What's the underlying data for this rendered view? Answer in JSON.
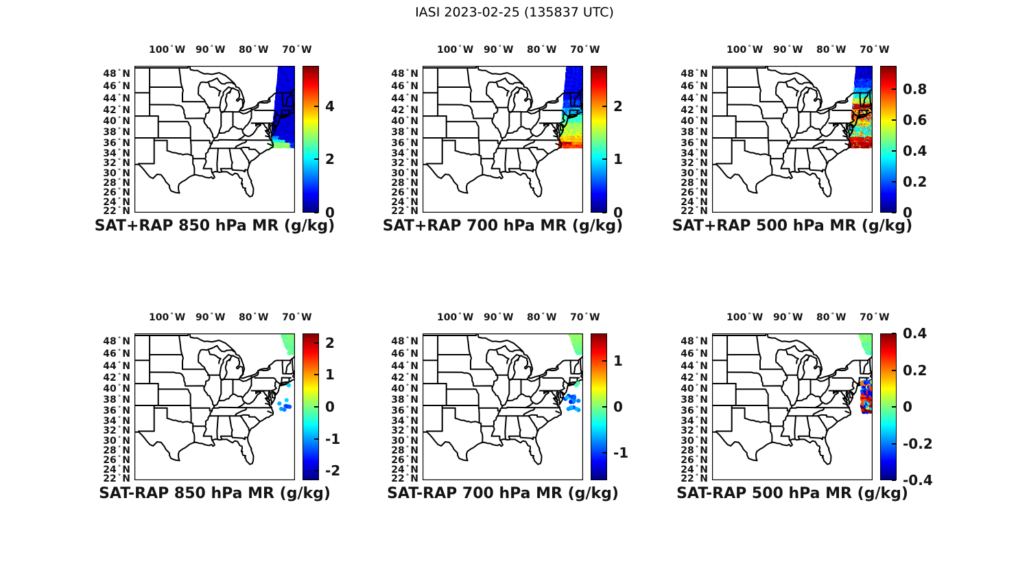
{
  "figure_title": "IASI 2023-02-25 (135837 UTC)",
  "axes": {
    "degree_symbol": "°",
    "lon_suffix": "W",
    "lat_suffix": "N",
    "lon_tick_labels": [
      "100",
      "90",
      "80",
      "70"
    ],
    "lat_tick_labels": [
      "48",
      "46",
      "44",
      "42",
      "40",
      "38",
      "36",
      "34",
      "32",
      "30",
      "28",
      "26",
      "24",
      "22"
    ]
  },
  "chart_data": {
    "type": "scatter",
    "description": "Six map panels over the eastern United States showing IASI satellite mixing-ratio retrievals along a north-south swath near 70W. Top row: SAT+RAP retrieved mixing ratio at 850/700/500 hPa. Bottom row: SAT minus RAP differences at the same levels. Jet colormap colorbars at right of each panel.",
    "projection": "mercator",
    "lon_range": [
      -107.55,
      -70.45
    ],
    "lat_range": [
      21.7,
      49.32
    ],
    "lon_tick_values": [
      -100,
      -90,
      -80,
      -70
    ],
    "lat_tick_values": [
      48,
      46,
      44,
      42,
      40,
      38,
      36,
      34,
      32,
      30,
      28,
      26,
      24,
      22
    ],
    "colormap": "jet",
    "grid": false,
    "swath_geometry": {
      "lat": [
        35.35,
        49.28
      ],
      "dlat": 0.18,
      "lon_east": -70.2,
      "west_edge_base": -75.8,
      "west_edge_slope": 0.13,
      "dlon": 0.26,
      "marker": 4.6
    },
    "wedge_geometry": {
      "lat": [
        46.25,
        49.2
      ],
      "dlat": 0.26,
      "lon_east": -70.05,
      "west_top": -73.35,
      "west_slope": 0.55,
      "dlon": 0.3,
      "marker": 3.1
    },
    "panels": [
      {
        "title": "SAT+RAP 850 hPa MR (g/kg)",
        "summary": "Swath mostly 0.3-0.7 g/kg (dark blue); yellow-orange spots 2-3 g/kg near 35.5-37N on west side of swath.",
        "colorbar": {
          "vmin": 0,
          "vmax": 5.52,
          "tick_values": [
            0,
            2,
            4
          ],
          "tick_labels": [
            "0",
            "2",
            "4"
          ]
        },
        "seed": 11,
        "swath_bands": [
          {
            "lat": [
              37.6,
              49.3
            ],
            "v": [
              0.5,
              0.45
            ]
          },
          {
            "lat": [
              36.9,
              37.6
            ],
            "v": [
              0.5,
              0.4
            ],
            "west": [
              0.28,
              1.55,
              0.5
            ]
          },
          {
            "lat": [
              36.3,
              36.9
            ],
            "v": [
              0.6,
              0.5
            ],
            "west": [
              0.55,
              2.2,
              0.8
            ]
          },
          {
            "lat": [
              35.3,
              36.3
            ],
            "v": [
              0.9,
              0.6
            ],
            "west": [
              0.78,
              2.85,
              0.7
            ]
          }
        ]
      },
      {
        "title": "SAT+RAP 700 hPa MR (g/kg)",
        "summary": "Swath graded from ~0.3 g/kg (blue) north of 44N through cyan/green 38-42N to 2-2.6 g/kg (orange/dark red) near 35.5-36.5N.",
        "colorbar": {
          "vmin": 0,
          "vmax": 2.76,
          "tick_values": [
            0,
            1,
            2
          ],
          "tick_labels": [
            "0",
            "1",
            "2"
          ]
        },
        "seed": 22,
        "swath_bands": [
          {
            "lat": [
              44.0,
              49.3
            ],
            "v": [
              0.3,
              0.25
            ]
          },
          {
            "lat": [
              42.6,
              44.0
            ],
            "v": [
              0.5,
              0.3
            ]
          },
          {
            "lat": [
              41.3,
              42.6
            ],
            "v": [
              0.85,
              0.45
            ]
          },
          {
            "lat": [
              40.0,
              41.3
            ],
            "v": [
              1.2,
              0.35
            ]
          },
          {
            "lat": [
              38.8,
              40.0
            ],
            "v": [
              1.45,
              0.3
            ],
            "speck": [
              0.15,
              1.7
            ]
          },
          {
            "lat": [
              37.6,
              38.8
            ],
            "v": [
              1.62,
              0.35
            ],
            "speck": [
              0.15,
              1.2
            ]
          },
          {
            "lat": [
              36.6,
              37.6
            ],
            "v": [
              1.85,
              0.4
            ]
          },
          {
            "lat": [
              35.9,
              36.6
            ],
            "v": [
              2.05,
              0.4
            ],
            "west": [
              0.5,
              2.55,
              0.3
            ]
          },
          {
            "lat": [
              35.3,
              35.9
            ],
            "v": [
              2.3,
              0.4
            ]
          }
        ]
      },
      {
        "title": "SAT+RAP 500 hPa MR (g/kg)",
        "summary": "Noisy banded swath: ~0.1 (dark blue) north of 46N, cyan/green 44-46N, dark red band 42.5-43.4N, mixed red/orange/cyan 38-42.5N, dark red ~0.9 south of 37.4N.",
        "colorbar": {
          "vmin": 0,
          "vmax": 0.95,
          "tick_values": [
            0,
            0.2,
            0.4,
            0.6,
            0.8
          ],
          "tick_labels": [
            "0",
            "0.2",
            "0.4",
            "0.6",
            "0.8"
          ]
        },
        "seed": 33,
        "swath_bands": [
          {
            "lat": [
              47.5,
              49.3
            ],
            "v": [
              0.07,
              0.08
            ]
          },
          {
            "lat": [
              46.0,
              47.5
            ],
            "v": [
              0.15,
              0.12
            ]
          },
          {
            "lat": [
              45.0,
              46.0
            ],
            "v": [
              0.28,
              0.12
            ]
          },
          {
            "lat": [
              44.2,
              45.0
            ],
            "v": [
              0.38,
              0.16
            ],
            "speck": [
              0.12,
              0.62
            ]
          },
          {
            "lat": [
              43.4,
              44.2
            ],
            "v": [
              0.56,
              0.22
            ],
            "speck": [
              0.1,
              0.3
            ]
          },
          {
            "lat": [
              42.5,
              43.4
            ],
            "v": [
              0.88,
              0.12
            ],
            "speck": [
              0.15,
              0.32
            ]
          },
          {
            "lat": [
              41.5,
              42.5
            ],
            "v": [
              0.7,
              0.35
            ],
            "speck": [
              0.12,
              0.18
            ]
          },
          {
            "lat": [
              40.5,
              41.5
            ],
            "v": [
              0.78,
              0.2
            ],
            "speck": [
              0.15,
              0.38
            ]
          },
          {
            "lat": [
              39.4,
              40.5
            ],
            "v": [
              0.63,
              0.25
            ],
            "speck": [
              0.12,
              0.3
            ]
          },
          {
            "lat": [
              38.4,
              39.4
            ],
            "v": [
              0.38,
              0.18
            ],
            "speck": [
              0.2,
              0.72
            ]
          },
          {
            "lat": [
              37.4,
              38.4
            ],
            "v": [
              0.52,
              0.5
            ]
          },
          {
            "lat": [
              36.4,
              37.4
            ],
            "v": [
              0.85,
              0.15
            ],
            "speck": [
              0.12,
              0.42
            ]
          },
          {
            "lat": [
              35.3,
              36.4
            ],
            "v": [
              0.9,
              0.1
            ],
            "speck": [
              0.08,
              0.5
            ]
          }
        ]
      },
      {
        "title": "SAT-RAP 850 hPa MR (g/kg)",
        "summary": "Pale-green cluster (~-0.1 g/kg) over Maine 46-49N; scattered cyan/blue points -0.7 to -1.5 g/kg offshore 36-41N.",
        "colorbar": {
          "vmin": -2.3,
          "vmax": 2.3,
          "tick_values": [
            -2,
            -1,
            0,
            1,
            2
          ],
          "tick_labels": [
            "-2",
            "-1",
            "0",
            "1",
            "2"
          ]
        },
        "seed": 44,
        "wedge": {
          "v": [
            -0.05,
            0.25
          ],
          "vgrad": 0.02
        },
        "scatter_points": [
          [
            40.7,
            -71.9,
            -0.75
          ],
          [
            38.0,
            -72.4,
            -0.75
          ],
          [
            37.35,
            -74.05,
            -0.95
          ],
          [
            36.9,
            -72.6,
            -1.3
          ],
          [
            36.8,
            -72.15,
            -1.5
          ],
          [
            36.75,
            -71.7,
            -1.35
          ],
          [
            36.35,
            -73.6,
            -1.0
          ],
          [
            36.2,
            -72.9,
            -1.15
          ]
        ]
      },
      {
        "title": "SAT-RAP 700 hPa MR (g/kg)",
        "summary": "Green cluster (~+0.1 g/kg) over Maine 46-49N; green-cyan dot near 41N; blue/cyan cluster -0.6 to -1.2 g/kg offshore 36-39N.",
        "colorbar": {
          "vmin": -1.6,
          "vmax": 1.6,
          "tick_values": [
            -1,
            0,
            1
          ],
          "tick_labels": [
            "-1",
            "0",
            "1"
          ]
        },
        "seed": 55,
        "wedge": {
          "v": [
            0.12,
            0.2
          ],
          "vgrad": 0.08
        },
        "scatter_box": {
          "lat": [
            35.9,
            38.9
          ],
          "lon": [
            -74.6,
            -70.9
          ],
          "n": 17,
          "v": [
            -0.85,
            0.6
          ]
        },
        "scatter_points": [
          [
            41.05,
            -71.6,
            -0.12
          ],
          [
            40.7,
            -72.0,
            -0.18
          ]
        ]
      },
      {
        "title": "SAT-RAP 500 hPa MR (g/kg)",
        "summary": "Pale-green cluster (~0 g/kg) over Maine 47-49N; dense mixed cluster offshore 36-41.5N with values spanning -0.4 to +0.4 g/kg (blues, cyans, reds, dark reds).",
        "colorbar": {
          "vmin": -0.4,
          "vmax": 0.4,
          "tick_values": [
            -0.4,
            -0.2,
            0,
            0.2,
            0.4
          ],
          "tick_labels": [
            "-0.4",
            "-0.2",
            "0",
            "0.2",
            "0.4"
          ]
        },
        "seed": 66,
        "wedge": {
          "v": [
            0.01,
            0.07
          ],
          "vgrad": 0.015
        },
        "zoned_box": {
          "lat": [
            35.9,
            41.5
          ],
          "lon": [
            -72.75,
            -69.95
          ],
          "dlat": 0.38,
          "dlon": 0.38,
          "keep": 0.82,
          "jitter": 0.14,
          "zones": [
            {
              "lat": [
                40.2,
                41.6
              ],
              "values": [
                -0.32,
                -0.18,
                -0.05,
                0.08,
                0.22,
                -0.25
              ]
            },
            {
              "lat": [
                38.6,
                40.2
              ],
              "values": [
                -0.3,
                -0.35,
                -0.25,
                -0.2,
                0.3,
                -0.32,
                0.25,
                -0.28
              ]
            },
            {
              "lat": [
                37.4,
                38.6
              ],
              "values": [
                0.3,
                0.35,
                0.25,
                -0.15,
                0.38,
                -0.1,
                0.2,
                -0.35
              ]
            },
            {
              "lat": [
                35.8,
                37.4
              ],
              "values": [
                0.35,
                -0.3,
                0.15,
                -0.38,
                0.3,
                -0.12,
                0.38,
                -0.2,
                0.05
              ]
            }
          ]
        }
      }
    ]
  }
}
